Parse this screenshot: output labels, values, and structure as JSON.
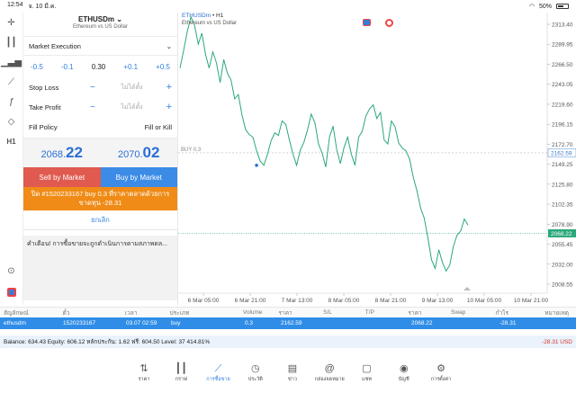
{
  "status_bar": {
    "time": "12:54",
    "date": "จ. 10 มี.ค.",
    "battery": "50%"
  },
  "tools": {
    "timeframe": "H1"
  },
  "order": {
    "symbol": "ETHUSDm",
    "symbol_desc": "Ethereum vs US Dollar",
    "execution": "Market Execution",
    "vol_minus_05": "-0.5",
    "vol_minus_01": "-0.1",
    "volume": "0.30",
    "vol_plus_01": "+0.1",
    "vol_plus_05": "+0.5",
    "stop_loss_label": "Stop Loss",
    "take_profit_label": "Take Profit",
    "not_set": "ไม่ได้ตั้ง",
    "minus": "−",
    "plus": "+",
    "fill_policy_label": "Fill Policy",
    "fill_policy_value": "Fill or Kill",
    "bid_main": "2068.",
    "bid_big": "22",
    "ask_main": "2070.",
    "ask_big": "02",
    "sell_label": "Sell by Market",
    "buy_label": "Buy by Market",
    "close_text": "ปิด #1520233167 buy 0.3 ที่ราคาตลาดด้วยการขาดทุน -28.31",
    "cancel_label": "ยกเลิก",
    "warning": "คำเตือน! การซื้อขายจะถูกดำเนินการตามสภาพตล..."
  },
  "chart": {
    "symbol": "ETHUSDm",
    "timeframe": "H1",
    "description": "Ethereum vs US Dollar",
    "position_label": "BUY 0.3",
    "position_price": "2162.59",
    "bid_label": "2068.22",
    "colors": {
      "line": "#2aa87a",
      "bid_tag": "#2aa87a",
      "position_tag": "#8fb8e8"
    }
  },
  "chart_data": {
    "type": "line",
    "y_ticks": [
      "2313.40",
      "2289.95",
      "2266.50",
      "2243.05",
      "2219.60",
      "2196.15",
      "2172.70",
      "2149.25",
      "2125.80",
      "2102.35",
      "2078.90",
      "2055.45",
      "2032.00",
      "2008.55"
    ],
    "x_ticks": [
      "6 Mar 05:00",
      "6 Mar 21:00",
      "7 Mar 13:00",
      "8 Mar 05:00",
      "8 Mar 21:00",
      "9 Mar 13:00",
      "10 Mar 05:00",
      "10 Mar 21:00"
    ],
    "ylim": [
      1998,
      2325
    ],
    "x": [
      0,
      1,
      2,
      3,
      4,
      5,
      6,
      7,
      8,
      9,
      10,
      11,
      12,
      13,
      14,
      15,
      16,
      17,
      18,
      19,
      20,
      21,
      22,
      23,
      24,
      25,
      26,
      27,
      28,
      29,
      30,
      31,
      32,
      33,
      34,
      35,
      36,
      37,
      38,
      39,
      40,
      41,
      42,
      43,
      44,
      45,
      46,
      47,
      48,
      49,
      50,
      51,
      52,
      53,
      54,
      55,
      56,
      57,
      58,
      59,
      60,
      61,
      62,
      63,
      64,
      65,
      66,
      67,
      68,
      69,
      70,
      71,
      72,
      73,
      74,
      75,
      76,
      77,
      78,
      79
    ],
    "y": [
      2262,
      2283,
      2305,
      2322,
      2312,
      2290,
      2303,
      2278,
      2262,
      2281,
      2268,
      2245,
      2272,
      2256,
      2248,
      2226,
      2231,
      2207,
      2190,
      2184,
      2181,
      2165,
      2153,
      2148,
      2161,
      2177,
      2186,
      2183,
      2200,
      2196,
      2178,
      2161,
      2148,
      2166,
      2175,
      2190,
      2208,
      2198,
      2173,
      2162,
      2146,
      2181,
      2194,
      2166,
      2150,
      2169,
      2181,
      2161,
      2148,
      2181,
      2188,
      2206,
      2214,
      2219,
      2203,
      2210,
      2178,
      2173,
      2200,
      2193,
      2174,
      2168,
      2165,
      2155,
      2134,
      2118,
      2098,
      2086,
      2063,
      2037,
      2027,
      2049,
      2034,
      2024,
      2031,
      2053,
      2066,
      2071,
      2085,
      2078
    ]
  },
  "positions": {
    "headers": [
      "สัญลักษณ์",
      "ตั๋ว",
      "เวลา",
      "ประเภท",
      "Volume",
      "ราคา",
      "S/L",
      "T/P",
      "ราคา",
      "Swap",
      "กำไร",
      "หมายเหตุ"
    ],
    "row": {
      "symbol": "ethusdm",
      "ticket": "1520233167",
      "time": "03.07 02:59",
      "type": "buy",
      "volume": "0.3",
      "price": "2162.59",
      "sl": "",
      "tp": "",
      "current": "2068.22",
      "swap": "",
      "profit": "-28.31",
      "comment": ""
    },
    "balance": "Balance: 634.43 Equity: 606.12 หลักประกัน: 1.62 ฟรี: 604.50 Level: 37 414.81%",
    "total_pl": "-28.31  USD"
  },
  "nav": [
    {
      "label": "ราคา",
      "icon": "quotes-icon"
    },
    {
      "label": "กราฟ",
      "icon": "chart-icon"
    },
    {
      "label": "การซื้อขาย",
      "icon": "trade-icon",
      "active": true
    },
    {
      "label": "ประวัติ",
      "icon": "history-icon"
    },
    {
      "label": "ข่าว",
      "icon": "news-icon"
    },
    {
      "label": "กล่องจดหมาย",
      "icon": "mailbox-icon"
    },
    {
      "label": "แชท",
      "icon": "chat-icon"
    },
    {
      "label": "บัญชี",
      "icon": "account-icon"
    },
    {
      "label": "การตั้งค่า",
      "icon": "settings-icon"
    }
  ]
}
